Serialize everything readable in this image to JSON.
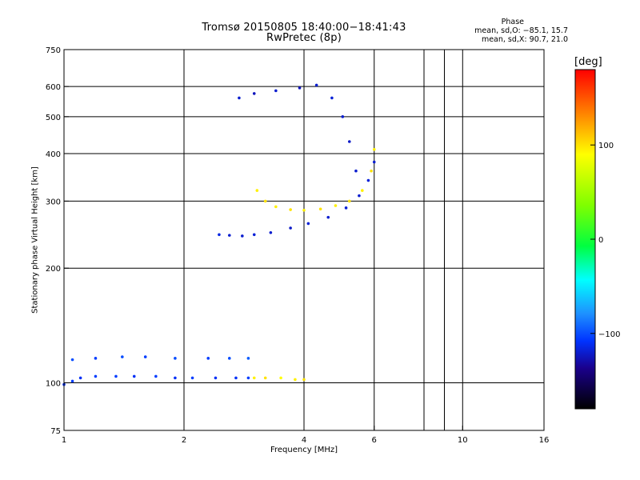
{
  "header": {
    "title_line1": "Tromsø 20150805 18:40:00−18:41:43",
    "title_line2": "RwPretec (8p)"
  },
  "phase_stats": {
    "heading": "Phase",
    "o_mode": "mean, sd,O: −85.1, 15.7",
    "x_mode": "mean, sd,X:  90.7, 21.0"
  },
  "colorbar": {
    "unit_label": "[deg]",
    "range": [
      -180,
      180
    ],
    "tick_values": [
      100,
      0,
      -100
    ],
    "tick_labels": [
      "100",
      "0",
      "−100"
    ]
  },
  "chart_data": {
    "type": "scatter",
    "title": "Tromsø 20150805 18:40:00−18:41:43",
    "subtitle": "RwPretec (8p)",
    "xlabel": "Frequency [MHz]",
    "ylabel": "Stationary phase Virtual Height [km]",
    "x_scale": "log",
    "y_scale": "log",
    "xlim": [
      1,
      16
    ],
    "ylim": [
      75,
      750
    ],
    "x_ticks": [
      1,
      2,
      4,
      6,
      10,
      16
    ],
    "x_tick_labels": [
      "1",
      "2",
      "4",
      "6",
      "10",
      "16"
    ],
    "x_gridlines": [
      2,
      4,
      6,
      8,
      9,
      10
    ],
    "y_ticks": [
      75,
      100,
      200,
      300,
      400,
      500,
      600,
      750
    ],
    "y_tick_labels": [
      "75",
      "100",
      "200",
      "300",
      "400",
      "500",
      "600",
      "750"
    ],
    "y_gridlines": [
      100,
      200,
      300,
      400,
      500,
      600
    ],
    "grid": true,
    "color_variable": "phase [deg]",
    "series": [
      {
        "values": [
          {
            "x": 1.0,
            "y": 99,
            "phase": -110
          },
          {
            "x": 1.05,
            "y": 101,
            "phase": -105
          },
          {
            "x": 1.1,
            "y": 103,
            "phase": -110
          },
          {
            "x": 1.2,
            "y": 104,
            "phase": -105
          },
          {
            "x": 1.35,
            "y": 104,
            "phase": -105
          },
          {
            "x": 1.5,
            "y": 104,
            "phase": -110
          },
          {
            "x": 1.7,
            "y": 104,
            "phase": -105
          },
          {
            "x": 1.9,
            "y": 103,
            "phase": -110
          },
          {
            "x": 2.1,
            "y": 103,
            "phase": -105
          },
          {
            "x": 2.4,
            "y": 103,
            "phase": -110
          },
          {
            "x": 2.7,
            "y": 103,
            "phase": -110
          },
          {
            "x": 2.9,
            "y": 103,
            "phase": -105
          }
        ]
      },
      {
        "values": [
          {
            "x": 3.0,
            "y": 103,
            "phase": 95
          },
          {
            "x": 3.2,
            "y": 103,
            "phase": 100
          },
          {
            "x": 3.5,
            "y": 103,
            "phase": 90
          },
          {
            "x": 3.8,
            "y": 102,
            "phase": 95
          },
          {
            "x": 4.0,
            "y": 102,
            "phase": 100
          }
        ]
      },
      {
        "values": [
          {
            "x": 1.05,
            "y": 115,
            "phase": -100
          },
          {
            "x": 1.2,
            "y": 116,
            "phase": -105
          },
          {
            "x": 1.4,
            "y": 117,
            "phase": -100
          },
          {
            "x": 1.6,
            "y": 117,
            "phase": -105
          },
          {
            "x": 1.9,
            "y": 116,
            "phase": -100
          },
          {
            "x": 2.3,
            "y": 116,
            "phase": -105
          },
          {
            "x": 2.6,
            "y": 116,
            "phase": -100
          },
          {
            "x": 2.9,
            "y": 116,
            "phase": -95
          }
        ]
      },
      {
        "values": [
          {
            "x": 2.45,
            "y": 245,
            "phase": -115
          },
          {
            "x": 2.6,
            "y": 244,
            "phase": -120
          },
          {
            "x": 2.8,
            "y": 243,
            "phase": -120
          },
          {
            "x": 3.0,
            "y": 245,
            "phase": -118
          },
          {
            "x": 3.3,
            "y": 248,
            "phase": -120
          },
          {
            "x": 3.7,
            "y": 255,
            "phase": -122
          },
          {
            "x": 4.1,
            "y": 262,
            "phase": -118
          },
          {
            "x": 4.6,
            "y": 272,
            "phase": -120
          },
          {
            "x": 5.1,
            "y": 288,
            "phase": -118
          },
          {
            "x": 5.5,
            "y": 310,
            "phase": -120
          },
          {
            "x": 5.8,
            "y": 340,
            "phase": -118
          },
          {
            "x": 6.0,
            "y": 380,
            "phase": -120
          }
        ]
      },
      {
        "values": [
          {
            "x": 3.05,
            "y": 320,
            "phase": 95
          },
          {
            "x": 3.2,
            "y": 300,
            "phase": 100
          },
          {
            "x": 3.4,
            "y": 290,
            "phase": 95
          },
          {
            "x": 3.7,
            "y": 285,
            "phase": 100
          },
          {
            "x": 4.0,
            "y": 284,
            "phase": 95
          },
          {
            "x": 4.4,
            "y": 286,
            "phase": 100
          },
          {
            "x": 4.8,
            "y": 292,
            "phase": 95
          },
          {
            "x": 5.2,
            "y": 300,
            "phase": 100
          },
          {
            "x": 5.6,
            "y": 320,
            "phase": 95
          },
          {
            "x": 5.9,
            "y": 360,
            "phase": 100
          },
          {
            "x": 6.0,
            "y": 410,
            "phase": 95
          }
        ]
      },
      {
        "values": [
          {
            "x": 2.75,
            "y": 560,
            "phase": -120
          },
          {
            "x": 3.0,
            "y": 575,
            "phase": -125
          },
          {
            "x": 3.4,
            "y": 585,
            "phase": -120
          },
          {
            "x": 3.9,
            "y": 595,
            "phase": -125
          },
          {
            "x": 4.3,
            "y": 605,
            "phase": -120
          },
          {
            "x": 4.7,
            "y": 560,
            "phase": -118
          },
          {
            "x": 5.0,
            "y": 500,
            "phase": -120
          },
          {
            "x": 5.2,
            "y": 430,
            "phase": -122
          },
          {
            "x": 5.4,
            "y": 360,
            "phase": -120
          }
        ]
      }
    ]
  }
}
